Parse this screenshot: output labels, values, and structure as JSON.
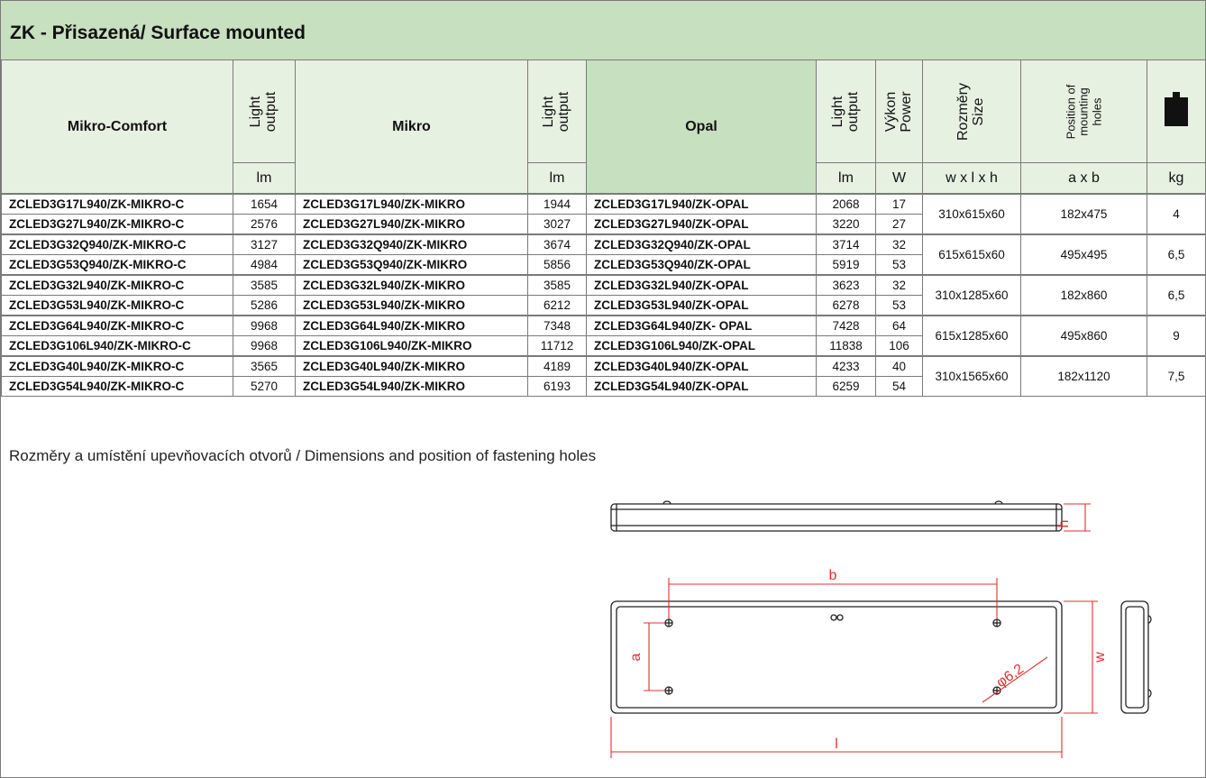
{
  "title": {
    "prefix": "ZK",
    "text": " - Přisazená/ Surface mounted"
  },
  "header": {
    "col1": "Mikro-Comfort",
    "light_output_l1": "Light",
    "light_output_l2": "output",
    "col3": "Mikro",
    "col5": "Opal",
    "power_l1": "Výkon",
    "power_l2": "Power",
    "size_l1": "Rozměry",
    "size_l2": "Size",
    "holes_l1": "Position of",
    "holes_l2": "mounting",
    "holes_l3": "holes",
    "weight_icon": "weight-icon",
    "units": {
      "lm": "lm",
      "w": "W",
      "size": "w x l x h",
      "holes": "a x b",
      "kg": "kg"
    }
  },
  "groups": [
    {
      "size": "310x615x60",
      "holes": "182x475",
      "kg": "4",
      "rows": [
        {
          "mc": "ZCLED3G17L940/ZK-MIKRO-C",
          "mc_lm": "1654",
          "m": "ZCLED3G17L940/ZK-MIKRO",
          "m_lm": "1944",
          "o": "ZCLED3G17L940/ZK-OPAL",
          "o_lm": "2068",
          "w": "17"
        },
        {
          "mc": "ZCLED3G27L940/ZK-MIKRO-C",
          "mc_lm": "2576",
          "m": "ZCLED3G27L940/ZK-MIKRO",
          "m_lm": "3027",
          "o": "ZCLED3G27L940/ZK-OPAL",
          "o_lm": "3220",
          "w": "27"
        }
      ]
    },
    {
      "size": "615x615x60",
      "holes": "495x495",
      "kg": "6,5",
      "rows": [
        {
          "mc": "ZCLED3G32Q940/ZK-MIKRO-C",
          "mc_lm": "3127",
          "m": "ZCLED3G32Q940/ZK-MIKRO",
          "m_lm": "3674",
          "o": "ZCLED3G32Q940/ZK-OPAL",
          "o_lm": "3714",
          "w": "32"
        },
        {
          "mc": "ZCLED3G53Q940/ZK-MIKRO-C",
          "mc_lm": "4984",
          "m": "ZCLED3G53Q940/ZK-MIKRO",
          "m_lm": "5856",
          "o": "ZCLED3G53Q940/ZK-OPAL",
          "o_lm": "5919",
          "w": "53"
        }
      ]
    },
    {
      "size": "310x1285x60",
      "holes": "182x860",
      "kg": "6,5",
      "rows": [
        {
          "mc": "ZCLED3G32L940/ZK-MIKRO-C",
          "mc_lm": "3585",
          "m": "ZCLED3G32L940/ZK-MIKRO",
          "m_lm": "3585",
          "o": "ZCLED3G32L940/ZK-OPAL",
          "o_lm": "3623",
          "w": "32"
        },
        {
          "mc": "ZCLED3G53L940/ZK-MIKRO-C",
          "mc_lm": "5286",
          "m": "ZCLED3G53L940/ZK-MIKRO",
          "m_lm": "6212",
          "o": "ZCLED3G53L940/ZK-OPAL",
          "o_lm": "6278",
          "w": "53"
        }
      ]
    },
    {
      "size": "615x1285x60",
      "holes": "495x860",
      "kg": "9",
      "rows": [
        {
          "mc": "ZCLED3G64L940/ZK-MIKRO-C",
          "mc_lm": "9968",
          "m": "ZCLED3G64L940/ZK-MIKRO",
          "m_lm": "7348",
          "o": "ZCLED3G64L940/ZK- OPAL",
          "o_lm": "7428",
          "w": "64"
        },
        {
          "mc": "ZCLED3G106L940/ZK-MIKRO-C",
          "mc_lm": "9968",
          "m": "ZCLED3G106L940/ZK-MIKRO",
          "m_lm": "11712",
          "o": "ZCLED3G106L940/ZK-OPAL",
          "o_lm": "11838",
          "w": "106"
        }
      ]
    },
    {
      "size": "310x1565x60",
      "holes": "182x1120",
      "kg": "7,5",
      "rows": [
        {
          "mc": "ZCLED3G40L940/ZK-MIKRO-C",
          "mc_lm": "3565",
          "m": "ZCLED3G40L940/ZK-MIKRO",
          "m_lm": "4189",
          "o": "ZCLED3G40L940/ZK-OPAL",
          "o_lm": "4233",
          "w": "40"
        },
        {
          "mc": "ZCLED3G54L940/ZK-MIKRO-C",
          "mc_lm": "5270",
          "m": "ZCLED3G54L940/ZK-MIKRO",
          "m_lm": "6193",
          "o": "ZCLED3G54L940/ZK-OPAL",
          "o_lm": "6259",
          "w": "54"
        }
      ]
    }
  ],
  "caption": "Rozměry a umístění upevňovacích otvorů / Dimensions and position of fastening holes",
  "drawing": {
    "h": "h",
    "b": "b",
    "a": "a",
    "w": "w",
    "l": "l",
    "dia": "φ6,2",
    "dim_color": "#e03030"
  }
}
